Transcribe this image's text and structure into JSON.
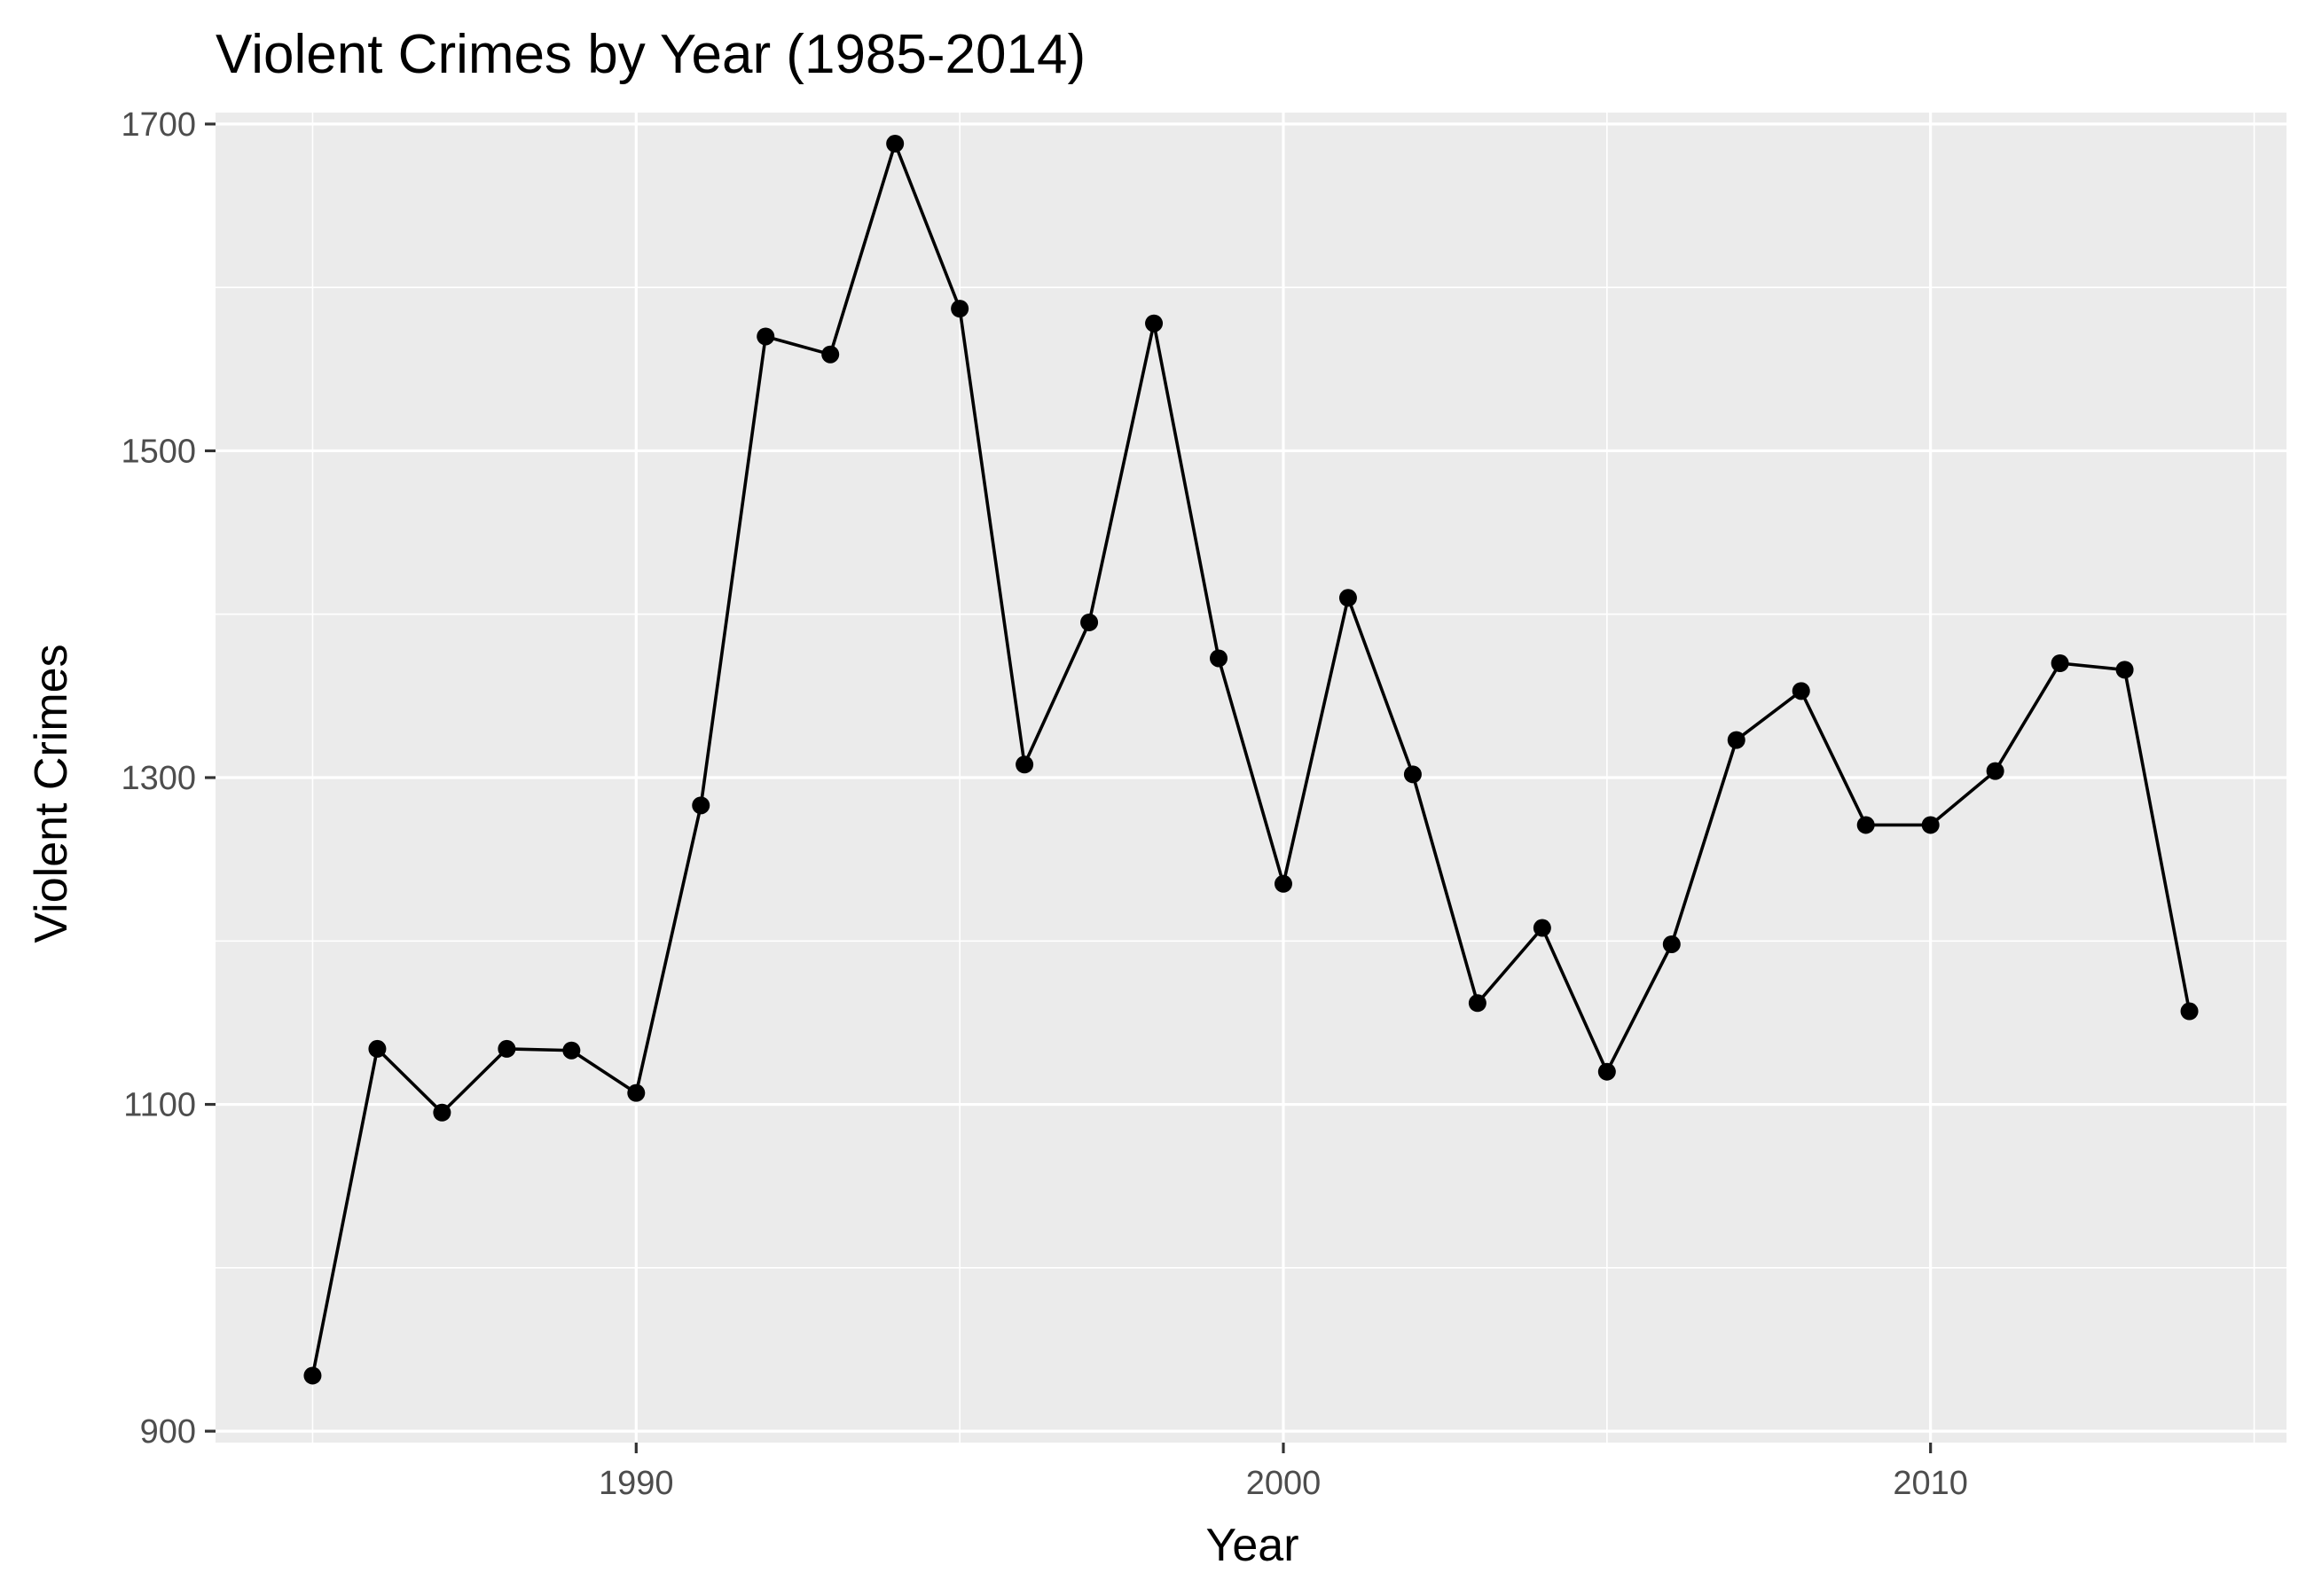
{
  "chart_data": {
    "type": "line",
    "title": "Violent Crimes by Year (1985-2014)",
    "xlabel": "Year",
    "ylabel": "Violent Crimes",
    "xlim": [
      1983.5,
      2015.5
    ],
    "ylim": [
      893,
      1707
    ],
    "x_ticks": [
      1990,
      2000,
      2010
    ],
    "y_ticks": [
      900,
      1100,
      1300,
      1500,
      1700
    ],
    "x_tick_labels": [
      "1990",
      "2000",
      "2010"
    ],
    "y_tick_labels": [
      "900",
      "1100",
      "1300",
      "1500",
      "1700"
    ],
    "x_minor": [
      1985,
      1995,
      2005,
      2015
    ],
    "y_minor": [
      1000,
      1200,
      1400,
      1600
    ],
    "grid": true,
    "panel_background": "#ebebeb",
    "grid_color": "#ffffff",
    "line_color": "#000000",
    "point_color": "#000000",
    "x": [
      1985,
      1986,
      1987,
      1988,
      1989,
      1990,
      1991,
      1992,
      1993,
      1994,
      1995,
      1996,
      1997,
      1998,
      1999,
      2000,
      2001,
      2002,
      2003,
      2004,
      2005,
      2006,
      2007,
      2008,
      2009,
      2010,
      2011,
      2012,
      2013,
      2014
    ],
    "values": [
      934,
      1134,
      1095,
      1134,
      1133,
      1107,
      1283,
      1570,
      1559,
      1688,
      1587,
      1308,
      1395,
      1578,
      1373,
      1235,
      1410,
      1302,
      1162,
      1208,
      1120,
      1198,
      1323,
      1353,
      1271,
      1271,
      1304,
      1370,
      1366,
      1157
    ]
  }
}
